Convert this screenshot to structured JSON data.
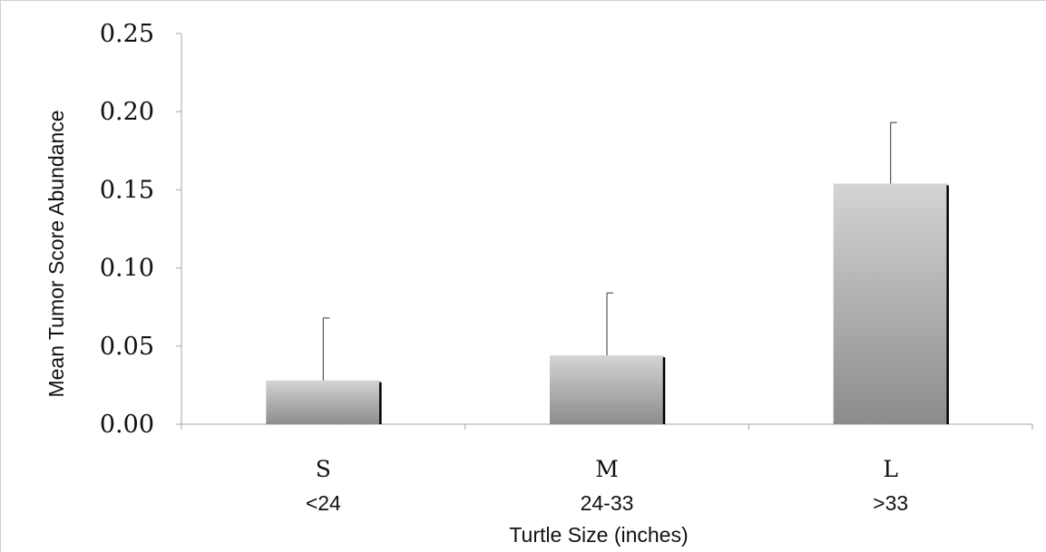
{
  "chart_data": {
    "type": "bar",
    "title": "",
    "xlabel": "Turtle Size (inches)",
    "ylabel": "Mean Tumor Score Abundance",
    "ylim": [
      0,
      0.25
    ],
    "yticks": [
      "0.00",
      "0.05",
      "0.10",
      "0.15",
      "0.20",
      "0.25"
    ],
    "categories": [
      "S",
      "M",
      "L"
    ],
    "category_sublabels": [
      "<24",
      "24-33",
      ">33"
    ],
    "values": [
      0.028,
      0.044,
      0.154
    ],
    "error_upper": [
      0.068,
      0.084,
      0.193
    ],
    "grid": false,
    "legend": "none",
    "colors": {
      "bar_light": "#d4d4d4",
      "bar_dark": "#8c8c8c",
      "bar_edge": "#000000",
      "axis": "#a6a6a6",
      "error_bar": "#555555"
    }
  }
}
